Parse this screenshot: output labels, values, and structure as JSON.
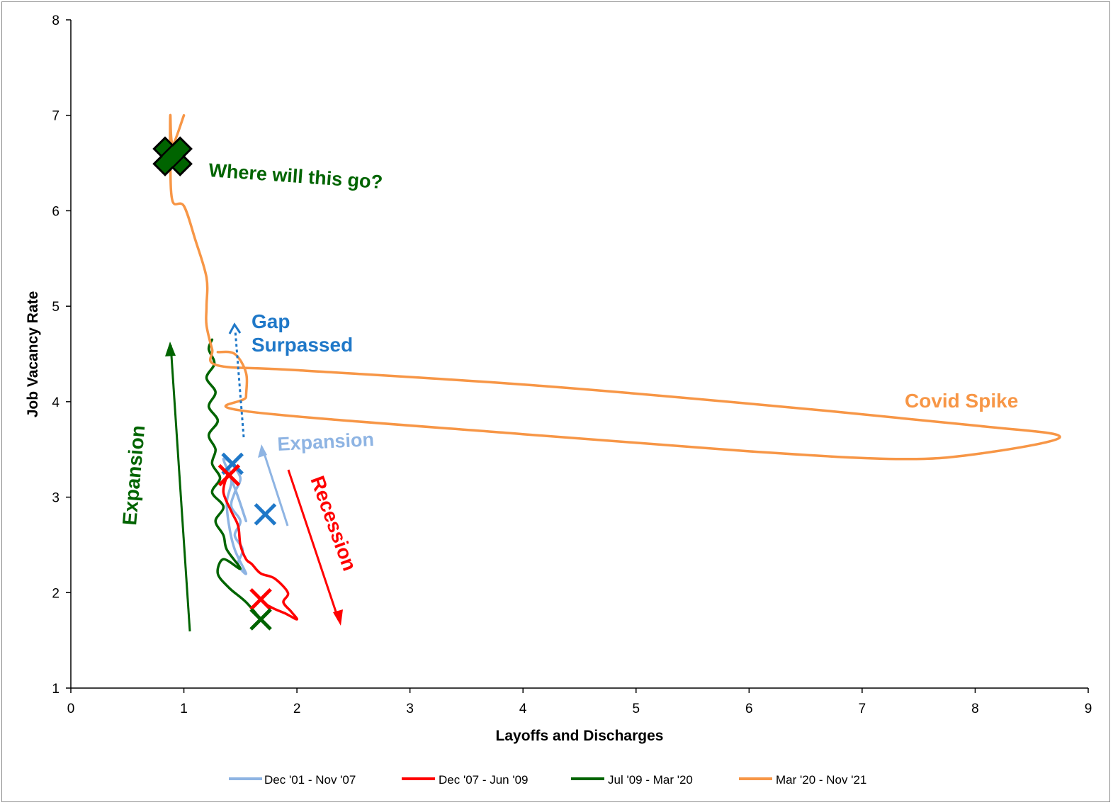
{
  "chart_data": {
    "type": "line",
    "title": "",
    "xlabel": "Layoffs and Discharges",
    "ylabel": "Job Vacancy Rate",
    "xlim": [
      0,
      9
    ],
    "ylim": [
      1,
      8
    ],
    "x_ticks": [
      "0",
      "1",
      "2",
      "3",
      "4",
      "5",
      "6",
      "7",
      "8",
      "9"
    ],
    "y_ticks": [
      "1",
      "2",
      "3",
      "4",
      "5",
      "6",
      "7",
      "8"
    ],
    "grid": false,
    "legend_position": "bottom",
    "series": [
      {
        "name": "Dec '01 - Nov '07",
        "color": "#8EB4E3",
        "points": [
          [
            1.55,
            2.75
          ],
          [
            1.48,
            3.0
          ],
          [
            1.4,
            3.25
          ],
          [
            1.35,
            3.4
          ],
          [
            1.42,
            3.35
          ],
          [
            1.5,
            3.2
          ],
          [
            1.45,
            3.05
          ],
          [
            1.42,
            2.9
          ],
          [
            1.5,
            2.75
          ],
          [
            1.45,
            2.6
          ],
          [
            1.52,
            2.45
          ],
          [
            1.48,
            2.3
          ],
          [
            1.55,
            2.2
          ],
          [
            1.45,
            2.45
          ],
          [
            1.4,
            2.7
          ],
          [
            1.38,
            2.95
          ],
          [
            1.42,
            3.15
          ],
          [
            1.4,
            3.3
          ],
          [
            1.42,
            3.35
          ]
        ]
      },
      {
        "name": "Dec '07 - Jun '09",
        "color": "#FF0000",
        "points": [
          [
            1.38,
            3.22
          ],
          [
            1.35,
            3.05
          ],
          [
            1.42,
            2.85
          ],
          [
            1.48,
            2.7
          ],
          [
            1.5,
            2.5
          ],
          [
            1.55,
            2.35
          ],
          [
            1.6,
            2.3
          ],
          [
            1.68,
            2.2
          ],
          [
            1.8,
            2.15
          ],
          [
            1.92,
            2.0
          ],
          [
            1.88,
            1.9
          ],
          [
            1.95,
            1.8
          ],
          [
            2.0,
            1.72
          ],
          [
            1.9,
            1.78
          ],
          [
            1.8,
            1.83
          ],
          [
            1.72,
            1.88
          ]
        ]
      },
      {
        "name": "Jul '09 - Mar '20",
        "color": "#006400",
        "points": [
          [
            1.68,
            1.72
          ],
          [
            1.55,
            1.9
          ],
          [
            1.4,
            2.05
          ],
          [
            1.3,
            2.2
          ],
          [
            1.35,
            2.35
          ],
          [
            1.5,
            2.25
          ],
          [
            1.38,
            2.45
          ],
          [
            1.35,
            2.6
          ],
          [
            1.28,
            2.75
          ],
          [
            1.35,
            2.9
          ],
          [
            1.25,
            3.05
          ],
          [
            1.32,
            3.2
          ],
          [
            1.25,
            3.35
          ],
          [
            1.28,
            3.5
          ],
          [
            1.22,
            3.65
          ],
          [
            1.3,
            3.8
          ],
          [
            1.22,
            3.95
          ],
          [
            1.28,
            4.1
          ],
          [
            1.2,
            4.25
          ],
          [
            1.27,
            4.4
          ],
          [
            1.22,
            4.55
          ],
          [
            1.25,
            4.65
          ]
        ]
      },
      {
        "name": "Mar '20 - Nov '21",
        "color": "#F79646",
        "points": [
          [
            1.3,
            4.52
          ],
          [
            1.45,
            4.5
          ],
          [
            1.55,
            4.3
          ],
          [
            1.55,
            4.05
          ],
          [
            1.55,
            3.9
          ],
          [
            4.0,
            3.66
          ],
          [
            6.0,
            3.48
          ],
          [
            7.3,
            3.4
          ],
          [
            8.0,
            3.45
          ],
          [
            8.75,
            3.63
          ],
          [
            8.0,
            3.75
          ],
          [
            6.0,
            3.98
          ],
          [
            4.0,
            4.18
          ],
          [
            2.0,
            4.33
          ],
          [
            1.3,
            4.38
          ],
          [
            1.25,
            4.55
          ],
          [
            1.2,
            4.8
          ],
          [
            1.2,
            5.0
          ],
          [
            1.2,
            5.3
          ],
          [
            1.1,
            5.7
          ],
          [
            1.0,
            6.05
          ],
          [
            0.9,
            6.1
          ],
          [
            0.88,
            6.5
          ],
          [
            0.88,
            7.0
          ],
          [
            0.9,
            6.7
          ],
          [
            1.0,
            7.0
          ]
        ]
      }
    ],
    "markers": [
      {
        "series": "Dec '01 - Nov '07",
        "x": 1.43,
        "y": 3.35,
        "color": "#1F78C8"
      },
      {
        "series": "Dec '01 - Nov '07",
        "x": 1.72,
        "y": 2.82,
        "color": "#1F78C8"
      },
      {
        "series": "Dec '07 - Jun '09",
        "x": 1.4,
        "y": 3.23,
        "color": "#FF0000"
      },
      {
        "series": "Dec '07 - Jun '09",
        "x": 1.68,
        "y": 1.93,
        "color": "#FF0000"
      },
      {
        "series": "Jul '09 - Mar '20",
        "x": 1.68,
        "y": 1.72,
        "color": "#006400"
      },
      {
        "series": "Mar '20 - Nov '21",
        "x": 0.9,
        "y": 6.57,
        "color": "#006400",
        "big": true
      }
    ],
    "annotations": [
      {
        "text": "Where will this go?",
        "color": "#006400"
      },
      {
        "text": "Gap",
        "color": "#1F78C8"
      },
      {
        "text": "Surpassed",
        "color": "#1F78C8"
      },
      {
        "text": "Covid Spike",
        "color": "#F79646"
      },
      {
        "text": "Expansion",
        "color": "#8EB4E3"
      },
      {
        "text": "Expansion",
        "color": "#006400"
      },
      {
        "text": "Recession",
        "color": "#FF0000"
      }
    ]
  }
}
